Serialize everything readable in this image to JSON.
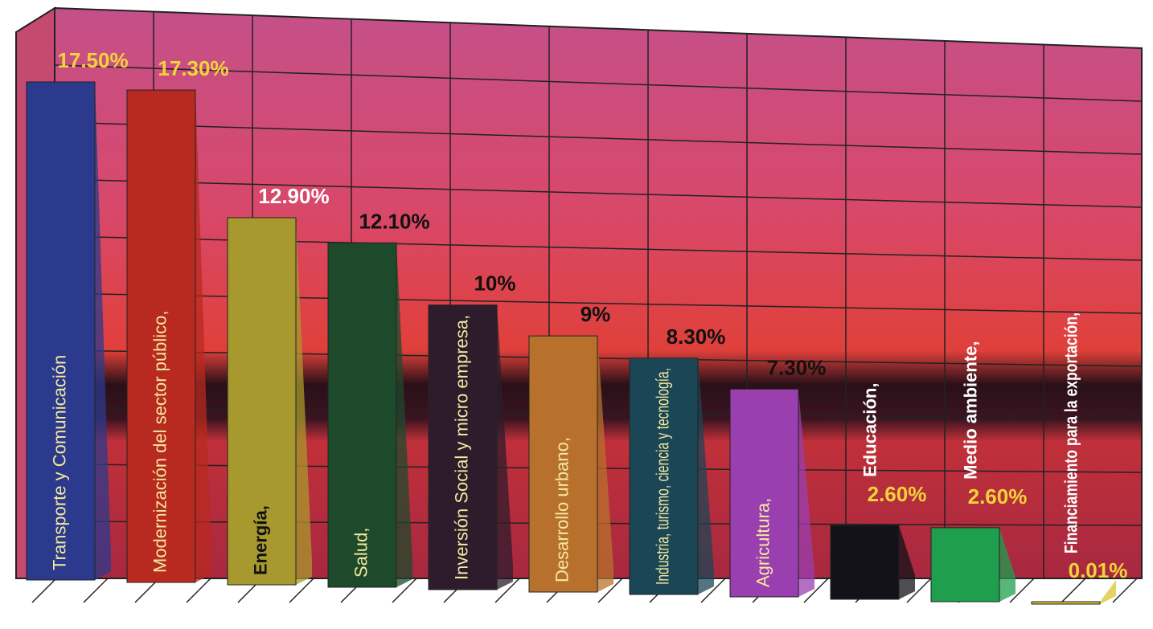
{
  "chart_data": {
    "type": "bar",
    "categories": [
      "Transporte y Comunicación",
      "Modernización del sector público,",
      "Energía,",
      "Salud,",
      "Inversión Social y micro empresa,",
      "Desarrollo urbano,",
      "Industria, turismo, ciencia y tecnología,",
      "Agricultura,",
      "Educación,",
      "Medio ambiente,",
      "Financiamiento para la exportación,"
    ],
    "values": [
      17.5,
      17.3,
      12.9,
      12.1,
      10,
      9,
      8.3,
      7.3,
      2.6,
      2.6,
      0.01
    ],
    "value_labels": [
      "17.50%",
      "17.30%",
      "12.90%",
      "12.10%",
      "10%",
      "9%",
      "8.30%",
      "7.30%",
      "2.60%",
      "2.60%",
      "0.01%"
    ],
    "colors": [
      "#2b3a8c",
      "#b8291f",
      "#a8992e",
      "#1e4a2c",
      "#2e1c2c",
      "#b8712c",
      "#1b4656",
      "#9a3fb0",
      "#121218",
      "#1f9e4e",
      "#d8c630"
    ]
  }
}
